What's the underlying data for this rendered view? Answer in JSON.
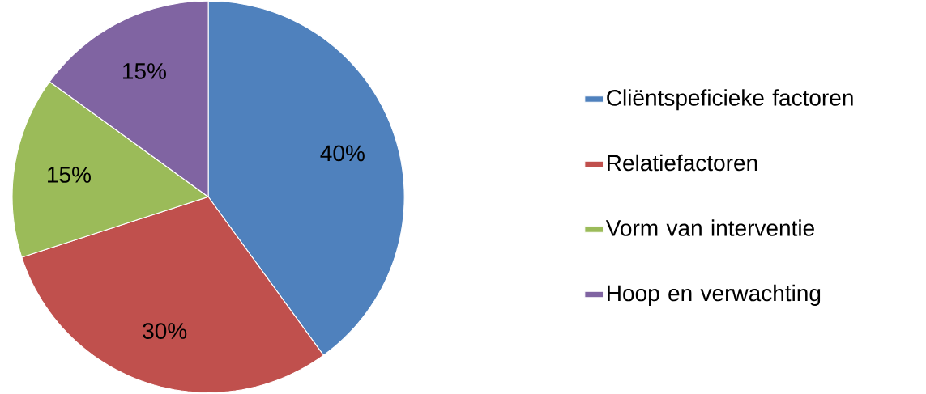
{
  "chart_data": {
    "type": "pie",
    "categories": [
      "Cliëntspeficieke factoren",
      "Relatiefactoren",
      "Vorm van interventie",
      "Hoop en verwachting"
    ],
    "values": [
      40,
      30,
      15,
      15
    ],
    "colors": [
      "#4f81bd",
      "#c0504d",
      "#9bbb59",
      "#8064a2"
    ],
    "value_labels": [
      "40%",
      "30%",
      "15%",
      "15%"
    ],
    "legend": "right"
  }
}
